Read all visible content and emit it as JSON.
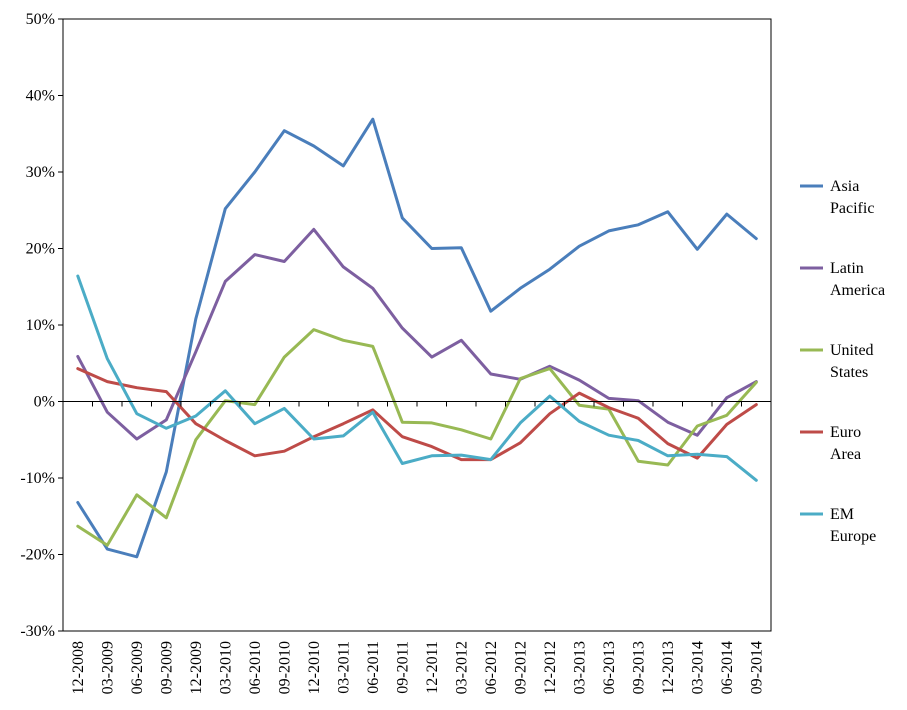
{
  "chart_data": {
    "type": "line",
    "title": "",
    "xlabel": "",
    "ylabel": "",
    "ylim": [
      -30,
      50
    ],
    "y_tick_values": [
      -30,
      -20,
      -10,
      0,
      10,
      20,
      30,
      40,
      50
    ],
    "y_tick_labels": [
      "-30%",
      "-20%",
      "-10%",
      "0%",
      "10%",
      "20%",
      "30%",
      "40%",
      "50%"
    ],
    "grid": false,
    "legend_position": "right",
    "categories": [
      "12-2008",
      "03-2009",
      "06-2009",
      "09-2009",
      "12-2009",
      "03-2010",
      "06-2010",
      "09-2010",
      "12-2010",
      "03-2011",
      "06-2011",
      "09-2011",
      "12-2011",
      "03-2012",
      "06-2012",
      "09-2012",
      "12-2012",
      "03-2013",
      "06-2013",
      "09-2013",
      "12-2013",
      "03-2014",
      "06-2014",
      "09-2014"
    ],
    "series": [
      {
        "name": "Asia Pacific",
        "legend_lines": [
          "Asia",
          "Pacific"
        ],
        "color": "#4a7ebb",
        "values": [
          -13.2,
          -19.3,
          -20.3,
          -9.2,
          10.8,
          25.2,
          30.0,
          35.4,
          33.4,
          30.8,
          36.9,
          24.0,
          20.0,
          20.1,
          11.8,
          14.8,
          17.3,
          20.3,
          22.3,
          23.1,
          24.8,
          19.9,
          24.5,
          21.3
        ]
      },
      {
        "name": "Latin America",
        "legend_lines": [
          "Latin",
          "America"
        ],
        "color": "#7d5fa0",
        "values": [
          5.9,
          -1.4,
          -4.9,
          -2.4,
          6.5,
          15.7,
          19.2,
          18.3,
          22.5,
          17.6,
          14.8,
          9.6,
          5.8,
          8.0,
          3.6,
          2.9,
          4.6,
          2.8,
          0.4,
          0.1,
          -2.7,
          -4.4,
          0.5,
          2.6
        ]
      },
      {
        "name": "United States",
        "legend_lines": [
          "United",
          "States"
        ],
        "color": "#98b954",
        "values": [
          -16.3,
          -18.8,
          -12.2,
          -15.2,
          -5.0,
          0.1,
          -0.4,
          5.8,
          9.4,
          8.0,
          7.2,
          -2.7,
          -2.8,
          -3.7,
          -4.9,
          3.0,
          4.3,
          -0.5,
          -1.0,
          -7.8,
          -8.3,
          -3.2,
          -1.8,
          2.5
        ]
      },
      {
        "name": "Euro Area",
        "legend_lines": [
          "Euro",
          "Area"
        ],
        "color": "#be4b48",
        "values": [
          4.3,
          2.6,
          1.8,
          1.3,
          -2.9,
          -5.1,
          -7.1,
          -6.5,
          -4.6,
          -2.9,
          -1.1,
          -4.6,
          -5.9,
          -7.6,
          -7.6,
          -5.4,
          -1.6,
          1.1,
          -0.8,
          -2.2,
          -5.5,
          -7.4,
          -3.0,
          -0.4
        ]
      },
      {
        "name": "EM Europe",
        "legend_lines": [
          "EM",
          "Europe"
        ],
        "color": "#4bacc6",
        "values": [
          16.4,
          5.6,
          -1.6,
          -3.5,
          -1.9,
          1.4,
          -2.9,
          -0.9,
          -4.9,
          -4.5,
          -1.4,
          -8.1,
          -7.1,
          -7.0,
          -7.6,
          -2.8,
          0.7,
          -2.6,
          -4.4,
          -5.1,
          -7.1,
          -6.9,
          -7.2,
          -10.3
        ]
      }
    ]
  }
}
